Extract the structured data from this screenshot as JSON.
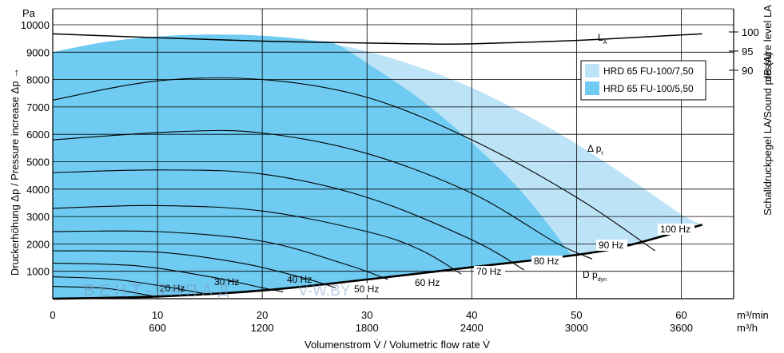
{
  "chart_data": {
    "type": "line",
    "x_axis": {
      "label": "Volumenstrom V̇ / Volumetric flow rate V̇",
      "unit_primary": "m³/min",
      "unit_secondary": "m³/h",
      "range": [
        0,
        65
      ],
      "ticks_primary": [
        "0",
        "10",
        "20",
        "30",
        "40",
        "50",
        "60"
      ],
      "ticks_secondary": [
        "600",
        "1200",
        "1800",
        "2400",
        "3000",
        "3600"
      ]
    },
    "y_axis": {
      "label": "Druckerhöhung Δp / Pressure increase Δp →",
      "unit": "Pa",
      "range": [
        0,
        10000
      ],
      "ticks": [
        "1000",
        "2000",
        "3000",
        "4000",
        "5000",
        "6000",
        "7000",
        "8000",
        "9000",
        "10000"
      ]
    },
    "y2_axis": {
      "label": "Schalldruckpegel LA/Sound pressure level LA →",
      "unit": "dB (A)",
      "ticks": [
        "100",
        "95",
        "90"
      ]
    },
    "grid": true,
    "legend": {
      "placement": "top-right",
      "entries": [
        {
          "label": "HRD 65 FU-100/7,50",
          "color": "#bde3f7"
        },
        {
          "label": "HRD 65 FU-100/5,50",
          "color": "#6fcbf1"
        }
      ]
    },
    "regions": [
      {
        "name": "HRD 65 FU-100/7,50",
        "color": "#bde3f7",
        "boundary": [
          [
            0,
            9000
          ],
          [
            5,
            9370
          ],
          [
            10,
            9570
          ],
          [
            15,
            9640
          ],
          [
            20,
            9600
          ],
          [
            25,
            9420
          ],
          [
            30,
            9030
          ],
          [
            35,
            8450
          ],
          [
            40,
            7700
          ],
          [
            45,
            6750
          ],
          [
            50,
            5650
          ],
          [
            55,
            4400
          ],
          [
            60,
            3080
          ],
          [
            62,
            2700
          ]
        ]
      },
      {
        "name": "HRD 65 FU-100/5,50",
        "color": "#6fcbf1",
        "boundary": [
          [
            0,
            9000
          ],
          [
            5,
            9370
          ],
          [
            10,
            9570
          ],
          [
            15,
            9640
          ],
          [
            20,
            9600
          ],
          [
            25,
            9420
          ],
          [
            27,
            9300
          ],
          [
            30,
            8600
          ],
          [
            35,
            7300
          ],
          [
            40,
            5700
          ],
          [
            45,
            3800
          ],
          [
            49.5,
            1600
          ]
        ]
      }
    ],
    "series": [
      {
        "name": "LA",
        "points": [
          [
            0,
            99.5
          ],
          [
            10,
            98.5
          ],
          [
            20,
            97.6
          ],
          [
            30,
            97.1
          ],
          [
            35,
            96.9
          ],
          [
            40,
            96.9
          ],
          [
            50,
            97.8
          ],
          [
            60,
            99.2
          ],
          [
            62,
            99.5
          ]
        ]
      },
      {
        "name": "Δ pt"
      },
      {
        "name": "100 Hz",
        "points": [
          [
            0,
            7250
          ],
          [
            10,
            7950
          ],
          [
            20,
            8000
          ],
          [
            30,
            7350
          ],
          [
            40,
            5800
          ],
          [
            50,
            3700
          ],
          [
            57.5,
            1750
          ]
        ]
      },
      {
        "name": "90 Hz",
        "points": [
          [
            0,
            5800
          ],
          [
            12,
            6100
          ],
          [
            20,
            6050
          ],
          [
            30,
            5300
          ],
          [
            40,
            3850
          ],
          [
            48,
            2050
          ],
          [
            51.5,
            1450
          ]
        ]
      },
      {
        "name": "80 Hz",
        "points": [
          [
            0,
            4600
          ],
          [
            10,
            4700
          ],
          [
            20,
            4550
          ],
          [
            30,
            3700
          ],
          [
            40,
            2150
          ],
          [
            45,
            1050
          ]
        ]
      },
      {
        "name": "70 Hz",
        "points": [
          [
            0,
            3300
          ],
          [
            10,
            3400
          ],
          [
            20,
            3200
          ],
          [
            30,
            2450
          ],
          [
            35,
            1800
          ],
          [
            39,
            900
          ]
        ]
      },
      {
        "name": "60 Hz",
        "points": [
          [
            0,
            2450
          ],
          [
            10,
            2450
          ],
          [
            20,
            2100
          ],
          [
            28,
            1250
          ],
          [
            32,
            700
          ]
        ]
      },
      {
        "name": "50 Hz",
        "points": [
          [
            0,
            1750
          ],
          [
            10,
            1700
          ],
          [
            18,
            1300
          ],
          [
            24,
            750
          ],
          [
            27,
            400
          ]
        ]
      },
      {
        "name": "40 Hz",
        "points": [
          [
            0,
            1300
          ],
          [
            8,
            1200
          ],
          [
            15,
            800
          ],
          [
            20,
            400
          ],
          [
            22,
            250
          ]
        ]
      },
      {
        "name": "30 Hz",
        "points": [
          [
            0,
            800
          ],
          [
            6,
            700
          ],
          [
            11,
            420
          ],
          [
            15,
            150
          ]
        ]
      },
      {
        "name": "20 Hz",
        "points": [
          [
            0,
            450
          ],
          [
            5,
            380
          ],
          [
            8,
            200
          ],
          [
            10,
            60
          ]
        ]
      },
      {
        "name": "D pdyn",
        "points": [
          [
            0,
            0
          ],
          [
            10,
            80
          ],
          [
            20,
            300
          ],
          [
            30,
            700
          ],
          [
            40,
            1150
          ],
          [
            50,
            1600
          ],
          [
            55,
            1950
          ],
          [
            62,
            2700
          ]
        ]
      }
    ]
  },
  "labels": {
    "pa_unit": "Pa",
    "db_unit": "dB (A)",
    "la": "L",
    "la_sub": "A",
    "dpt": "Δ p",
    "dpt_sub": "t",
    "dpdyn": "D p",
    "dpdyn_sub": "dyn",
    "x_unit_primary": "m³/min",
    "x_unit_secondary": "m³/h",
    "x_title": "Volumenstrom V̇ / Volumetric flow rate V̇",
    "y_title": "Druckerhöhung Δp / Pressure increase Δp →",
    "y2_title": "Schalldruckpegel LA/Sound pressure level LA →",
    "watermark_left": "ВЕНТ-ЗАПАД",
    "watermark_right": "V-W.BY"
  },
  "hz_labels": [
    "20 Hz",
    "30 Hz",
    "40 Hz",
    "50 Hz",
    "60 Hz",
    "70 Hz",
    "80 Hz",
    "90 Hz",
    "100 Hz"
  ],
  "colors": {
    "fill_large": "#bde3f7",
    "fill_small": "#6fcbf1",
    "grid": "#000000",
    "curves": "#000000"
  }
}
